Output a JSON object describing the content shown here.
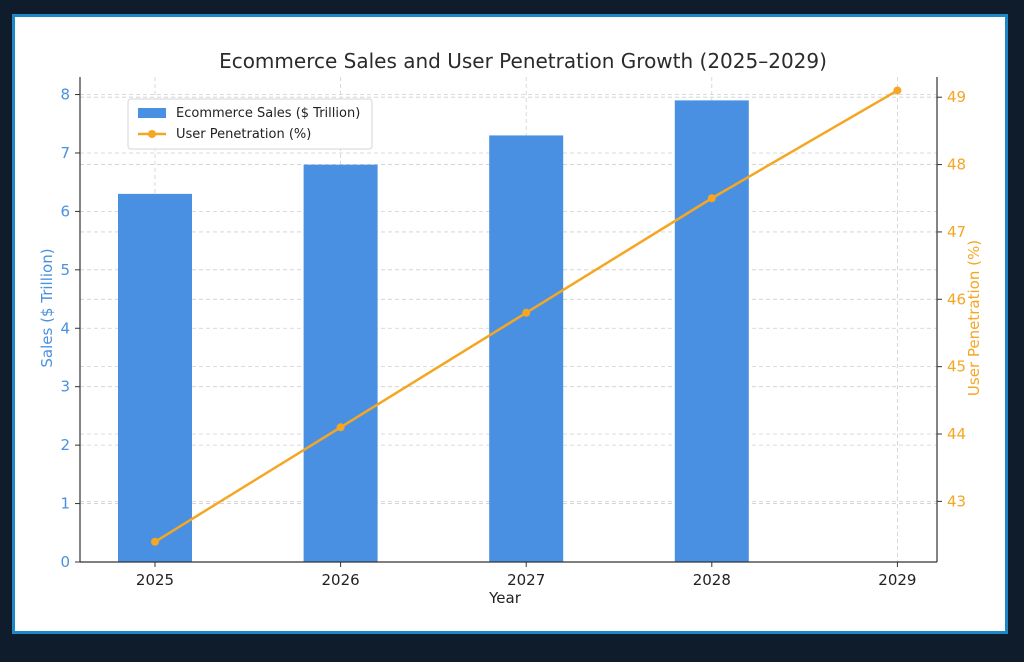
{
  "chart_data": {
    "type": "bar",
    "title": "Ecommerce Sales and User Penetration Growth (2025–2029)",
    "xlabel": "Year",
    "categories": [
      "2025",
      "2026",
      "2027",
      "2028",
      "2029"
    ],
    "ylabel_left": "Sales ($ Trillion)",
    "ylabel_right": "User Penetration (%)",
    "ylim_left": [
      0,
      8.3
    ],
    "ylim_right": [
      42.1,
      49.3
    ],
    "yticks_left": [
      0,
      1,
      2,
      3,
      4,
      5,
      6,
      7,
      8
    ],
    "yticks_right": [
      43,
      44,
      45,
      46,
      47,
      48,
      49
    ],
    "grid": true,
    "legend_position": "upper-left",
    "series": [
      {
        "name": "Ecommerce Sales ($ Trillion)",
        "type": "bar",
        "axis": "left",
        "color": "#4a90e2",
        "values": [
          6.3,
          6.8,
          7.3,
          7.9,
          null
        ]
      },
      {
        "name": "User Penetration (%)",
        "type": "line",
        "axis": "right",
        "color": "#f5a623",
        "values": [
          42.4,
          44.1,
          45.8,
          47.5,
          49.1
        ]
      }
    ]
  }
}
